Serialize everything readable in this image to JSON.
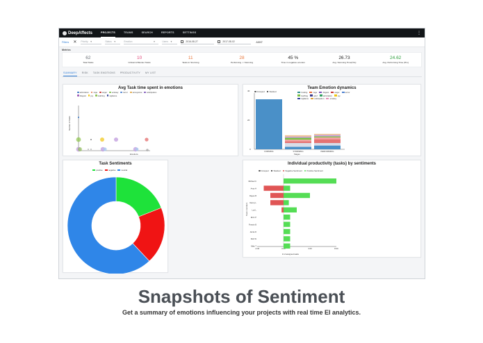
{
  "app": {
    "logo": "DeepAffects"
  },
  "nav": {
    "items": [
      "PROJECTS",
      "TEAMS",
      "SEARCH",
      "REPORTS",
      "SETTINGS"
    ],
    "active": 0,
    "more": "⋮"
  },
  "filters": {
    "label": "Filters",
    "clear": "✕",
    "selects": [
      "Priority",
      "Status",
      "Emotion",
      "Users"
    ],
    "date_from": "2016-08-27",
    "date_to": "2017-08-02",
    "unit": "AMNT"
  },
  "metrics_label": "Metrics",
  "metrics": [
    {
      "value": "62",
      "label": "Total Tasks",
      "color": "#6b7178"
    },
    {
      "value": "10",
      "label": "Critical & Blocker Tasks",
      "color": "#e0467a"
    },
    {
      "value": "11",
      "label": "Tasks in Storming",
      "color": "#e8763a"
    },
    {
      "value": "28",
      "label": "Performing -> Storming",
      "color": "#e8763a"
    },
    {
      "value": "45 %",
      "label": "Time in negative emotion",
      "color": "#222222"
    },
    {
      "value": "26.73",
      "label": "Avg. Storming Time(Hrs)",
      "color": "#222222"
    },
    {
      "value": "24.62",
      "label": "Avg. Performing Time (Hrs)",
      "color": "#2a9d3a"
    }
  ],
  "tabs": [
    "SUMMARY",
    "RISK",
    "TASK EMOTIONS",
    "PRODUCTIVITY",
    "MY LIST"
  ],
  "active_tab": 0,
  "charts": {
    "scatter": {
      "title": "Avg Task time spent in emotions",
      "legend": [
        {
          "name": "admiration",
          "color": "#2f6fbf"
        },
        {
          "name": "rage",
          "color": "#e66b3a"
        },
        {
          "name": "anger",
          "color": "#c9302c"
        },
        {
          "name": "ecstasy",
          "color": "#79c142"
        },
        {
          "name": "terror",
          "color": "#4a7fcf"
        },
        {
          "name": "annoyance",
          "color": "#e0a33a"
        },
        {
          "name": "anticipation",
          "color": "#7a4fb8"
        },
        {
          "name": "disgust",
          "color": "#9b59b6"
        },
        {
          "name": "joy",
          "color": "#f1c40f"
        },
        {
          "name": "loathing",
          "color": "#8bc34a"
        },
        {
          "name": "vigilance",
          "color": "#2c3e99"
        }
      ],
      "ylabel": "Number of Tasks",
      "xlabel": "Emotions"
    },
    "team": {
      "title": "Team Emotion dynamics",
      "legend_top": [
        {
          "name": "Grouped",
          "color": "#ffffff"
        },
        {
          "name": "Stacked",
          "color": "#222222"
        }
      ],
      "legend": [
        {
          "name": "trusting",
          "color": "#2a8c8c"
        },
        {
          "name": "rage",
          "color": "#e66b3a"
        },
        {
          "name": "disgust",
          "color": "#7a4fb8"
        },
        {
          "name": "anger",
          "color": "#c9302c"
        },
        {
          "name": "terror",
          "color": "#4a7fcf"
        },
        {
          "name": "loathing",
          "color": "#79c142"
        },
        {
          "name": "grief",
          "color": "#3a3a8c"
        },
        {
          "name": "admiration",
          "color": "#2f9f5f"
        },
        {
          "name": "joy",
          "color": "#f1c40f"
        },
        {
          "name": "vigilance",
          "color": "#2c3e99"
        },
        {
          "name": "anticipation",
          "color": "#e0a33a"
        },
        {
          "name": "ecstasy",
          "color": "#e58fb8"
        }
      ],
      "yticks": [
        "40",
        "20",
        "0"
      ],
      "xlabel": "Stages",
      "chart_data": {
        "type": "bar",
        "categories": [
          "FORMING",
          "STORMING",
          "PERFORMING"
        ],
        "series": [
          {
            "values": [
              40,
              2,
              3
            ],
            "color": "#4a90c8"
          },
          {
            "values": [
              0,
              3,
              2
            ],
            "color": "#d9dde8"
          },
          {
            "values": [
              0,
              1.5,
              3
            ],
            "color": "#e57373"
          },
          {
            "values": [
              0,
              1.2,
              1.5
            ],
            "color": "#f4a3a3"
          },
          {
            "values": [
              0,
              1.5,
              0.8
            ],
            "color": "#79c142"
          },
          {
            "values": [
              0,
              1,
              1.2
            ],
            "color": "#c9a0d8"
          },
          {
            "values": [
              0,
              1,
              0.8
            ],
            "color": "#f0c08a"
          }
        ],
        "ylim": [
          0,
          45
        ]
      }
    },
    "sentiment": {
      "title": "Task Sentiments",
      "chart_data": {
        "type": "pie",
        "labels": [
          "positive",
          "negative",
          "neutral"
        ],
        "values": [
          19,
          19,
          62
        ],
        "colors": [
          "#1ee23a",
          "#f01414",
          "#2f86e8"
        ]
      }
    },
    "productivity": {
      "title": "Individual productivity (tasks) by sentiments",
      "legend": [
        {
          "name": "Grouped",
          "color": "#ffffff"
        },
        {
          "name": "Stacked",
          "color": "#222222"
        },
        {
          "name": "Negative Sentiment",
          "color": "#e05555"
        },
        {
          "name": "Positive Sentiment",
          "color": "#55dd55"
        }
      ],
      "ylabel": "Team members",
      "xlabel": "# of assigned tasks",
      "xticks": [
        "-4.00",
        "0.00",
        "4.00",
        "8.00"
      ],
      "chart_data": {
        "type": "bar",
        "orientation": "horizontal",
        "categories": [
          "Michael C",
          "Amiy H",
          "Rayee B",
          "Danny L",
          "Lori L",
          "Elvin P",
          "Francis B",
          "Jamie D",
          "Nick W",
          "Mike T"
        ],
        "series": [
          {
            "name": "Negative Sentiment",
            "values": [
              0,
              -3,
              -2,
              -2,
              -0.3,
              0,
              0,
              0,
              0,
              0
            ]
          },
          {
            "name": "Positive Sentiment",
            "values": [
              8,
              1,
              4,
              0.8,
              2,
              1,
              1,
              1,
              1,
              1
            ]
          }
        ],
        "xlim": [
          -4,
          8
        ]
      }
    }
  },
  "headline": "Snapshots of Sentiment",
  "subline": "Get a summary of emotions influencing your projects with real time EI analytics."
}
